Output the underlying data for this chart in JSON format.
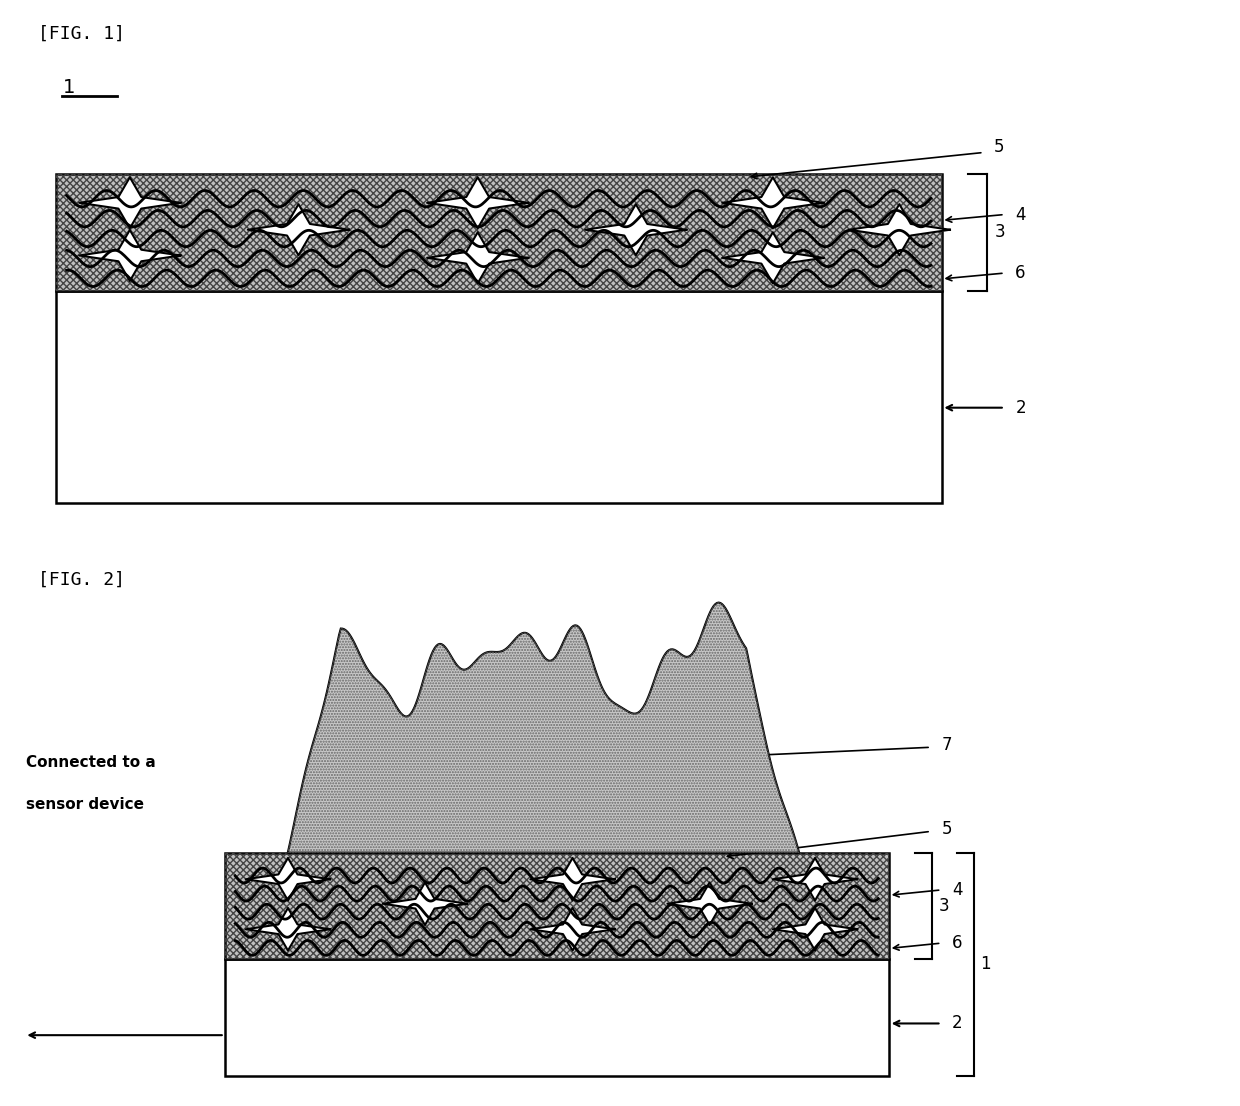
{
  "fig1": {
    "title": "[FIG. 1]",
    "label1": "1",
    "bg_color": "#ffffff",
    "layer_color": "#c0c0c0",
    "hatch_color": "#444444"
  },
  "fig2": {
    "title": "[FIG. 2]",
    "sensor_text_line1": "Connected to a",
    "sensor_text_line2": "sensor device",
    "blob_color": "#c8c8c8"
  }
}
